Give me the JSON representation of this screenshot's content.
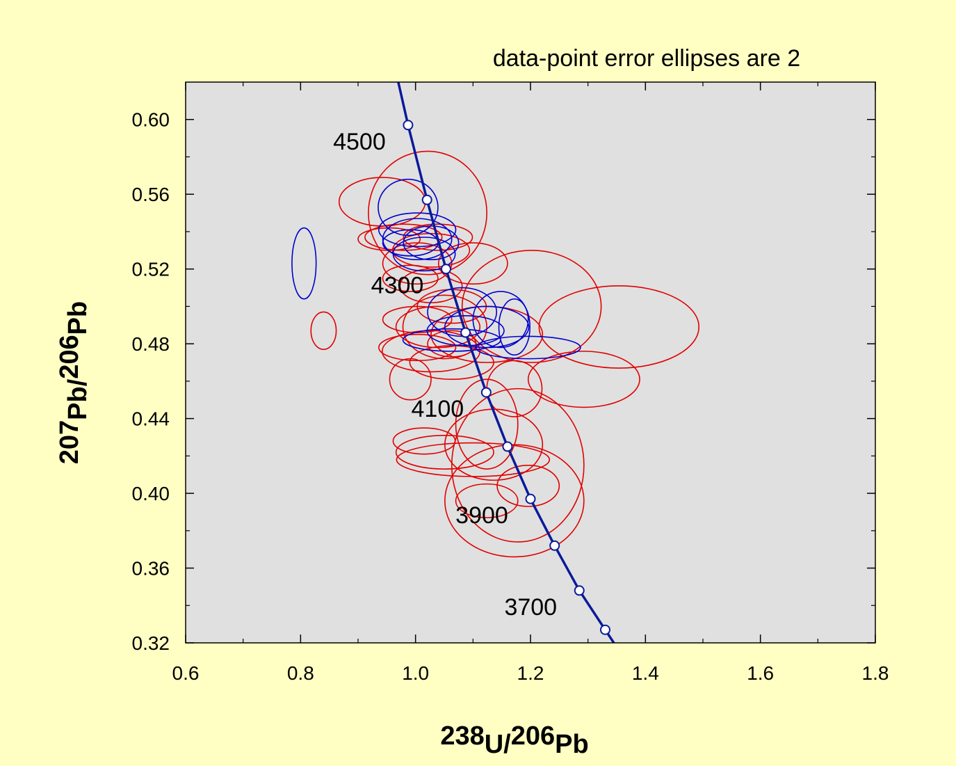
{
  "chart_data": {
    "type": "scatter",
    "title": "data-point error ellipses are 2",
    "x_label": [
      "238",
      "U/",
      "206",
      "Pb"
    ],
    "y_label": [
      "207",
      "Pb/",
      "206",
      "Pb"
    ],
    "xlim": [
      0.6,
      1.8
    ],
    "ylim": [
      0.32,
      0.62
    ],
    "xticks": [
      0.6,
      0.8,
      {
        "value": 1.0,
        "label": "1.0"
      },
      1.2,
      1.4,
      1.6,
      1.8
    ],
    "yticks": [
      0.32,
      0.36,
      {
        "value": 0.4,
        "label": "0.40"
      },
      0.44,
      0.48,
      0.52,
      0.56,
      {
        "value": 0.6,
        "label": "0.60"
      }
    ],
    "xminorticks": [
      0.7,
      0.9,
      1.1,
      1.3,
      1.5,
      1.7
    ],
    "yminorticks": [
      0.34,
      0.38,
      0.42,
      0.46,
      0.5,
      0.54,
      0.58
    ],
    "plot_background": "#e0e0e0",
    "series": [
      {
        "color": "#e00000",
        "x": [
          0.942,
          1.021,
          0.84,
          1.354,
          1.202,
          1.293,
          1.172,
          1.178,
          1.196,
          1.051,
          1.015,
          1.1,
          1.124,
          1.136,
          1.172,
          1.027,
          1.003,
          1.063,
          1.039,
          1.003,
          1.063,
          1.124,
          1.027,
          0.991,
          1.003,
          0.979,
          0.954,
          1.039,
          1.027,
          1.1,
          1.051,
          1.124,
          1.063,
          0.991
        ],
        "y": [
          0.556,
          0.55,
          0.487,
          0.489,
          0.5,
          0.461,
          0.396,
          0.415,
          0.404,
          0.422,
          0.428,
          0.418,
          0.437,
          0.426,
          0.456,
          0.476,
          0.478,
          0.47,
          0.489,
          0.493,
          0.5,
          0.485,
          0.511,
          0.515,
          0.523,
          0.537,
          0.536,
          0.537,
          0.53,
          0.523,
          0.489,
          0.396,
          0.48,
          0.461
        ],
        "rx": [
          0.075,
          0.103,
          0.022,
          0.139,
          0.121,
          0.097,
          0.121,
          0.115,
          0.054,
          0.085,
          0.054,
          0.133,
          0.054,
          0.085,
          0.048,
          0.085,
          0.067,
          0.073,
          0.073,
          0.06,
          0.06,
          0.097,
          0.054,
          0.048,
          0.06,
          0.067,
          0.054,
          0.06,
          0.067,
          0.06,
          0.073,
          0.054,
          0.042,
          0.036
        ],
        "ry": [
          0.013,
          0.033,
          0.01,
          0.022,
          0.03,
          0.015,
          0.03,
          0.041,
          0.011,
          0.009,
          0.007,
          0.009,
          0.024,
          0.019,
          0.015,
          0.011,
          0.007,
          0.009,
          0.011,
          0.007,
          0.009,
          0.015,
          0.009,
          0.007,
          0.011,
          0.007,
          0.006,
          0.007,
          0.009,
          0.011,
          0.017,
          0.009,
          0.007,
          0.011
        ]
      },
      {
        "color": "#0000cc",
        "x": [
          0.806,
          0.987,
          1.003,
          1.003,
          0.991,
          1.027,
          1.015,
          1.081,
          1.087,
          1.124,
          1.148,
          1.196,
          1.063,
          1.172
        ],
        "y": [
          0.523,
          0.553,
          0.541,
          0.536,
          0.534,
          0.534,
          0.528,
          0.497,
          0.487,
          0.489,
          0.493,
          0.478,
          0.482,
          0.489
        ],
        "rx": [
          0.021,
          0.052,
          0.067,
          0.06,
          0.048,
          0.048,
          0.054,
          0.06,
          0.067,
          0.073,
          0.048,
          0.091,
          0.085,
          0.027
        ],
        "ry": [
          0.019,
          0.015,
          0.009,
          0.011,
          0.007,
          0.009,
          0.009,
          0.013,
          0.008,
          0.011,
          0.015,
          0.006,
          0.006,
          0.015
        ]
      }
    ],
    "concordia": {
      "color": "#0a1a9a",
      "x": [
        0.97,
        0.987,
        1.02,
        1.053,
        1.087,
        1.123,
        1.16,
        1.2,
        1.242,
        1.285,
        1.33,
        1.345
      ],
      "y": [
        0.62,
        0.597,
        0.557,
        0.52,
        0.486,
        0.454,
        0.425,
        0.397,
        0.372,
        0.348,
        0.327,
        0.32
      ],
      "markers": {
        "x": [
          0.987,
          1.02,
          1.053,
          1.087,
          1.123,
          1.16,
          1.2,
          1.242,
          1.285,
          1.33
        ],
        "y": [
          0.597,
          0.557,
          0.52,
          0.486,
          0.454,
          0.425,
          0.397,
          0.372,
          0.348,
          0.327
        ],
        "labels": [
          4500,
          null,
          4300,
          null,
          4100,
          null,
          3900,
          null,
          3700,
          null
        ]
      }
    }
  }
}
